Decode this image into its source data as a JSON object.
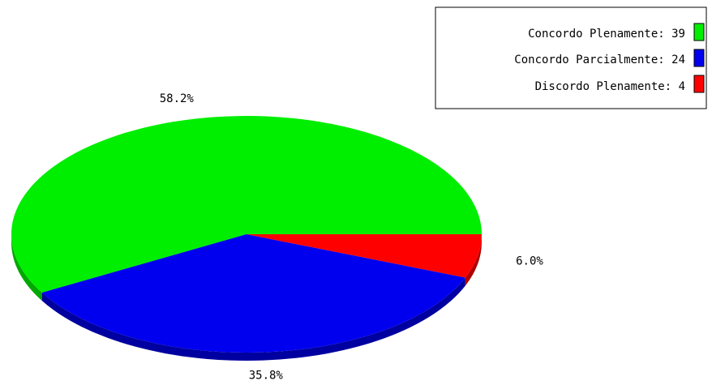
{
  "chart_data": {
    "type": "pie",
    "style": "3d-oval",
    "slices": [
      {
        "label": "Concordo Plenamente",
        "value": 39,
        "percent_label": "58.2%",
        "color": "#00ee00",
        "side_color": "#00a800"
      },
      {
        "label": "Concordo Parcialmente",
        "value": 24,
        "percent_label": "35.8%",
        "color": "#0000ee",
        "side_color": "#0000a0"
      },
      {
        "label": "Discordo Plenamente",
        "value": 4,
        "percent_label": "6.0%",
        "color": "#ff0000",
        "side_color": "#b00000"
      }
    ],
    "legend": {
      "position": "top-right",
      "entries": [
        {
          "text": "Concordo Plenamente: 39"
        },
        {
          "text": "Concordo Parcialmente: 24"
        },
        {
          "text": "Discordo Plenamente: 4"
        }
      ]
    }
  }
}
